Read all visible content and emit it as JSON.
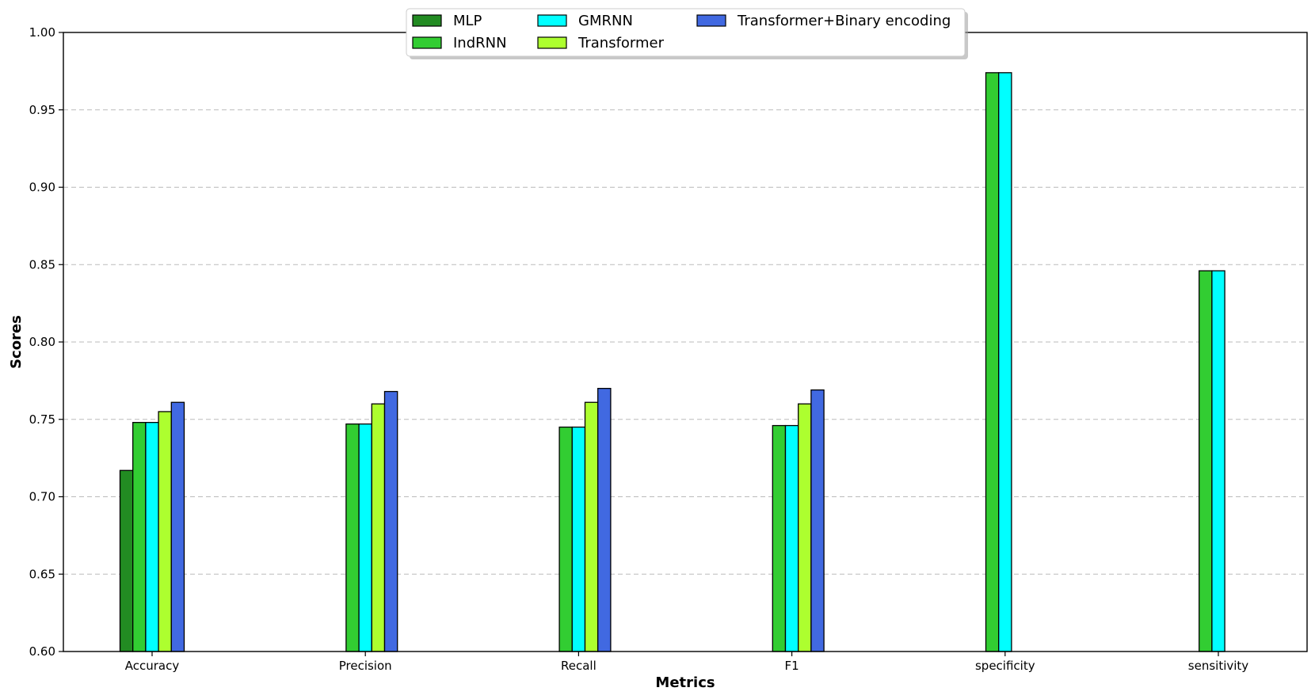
{
  "chart_data": {
    "type": "bar",
    "xlabel": "Metrics",
    "ylabel": "Scores",
    "ylim": [
      0.6,
      1.0
    ],
    "yticks": [
      "0.60",
      "0.65",
      "0.70",
      "0.75",
      "0.80",
      "0.85",
      "0.90",
      "0.95",
      "1.00"
    ],
    "grid": "y-dashed",
    "legend_position": "top-center",
    "categories": [
      "Accuracy",
      "Precision",
      "Recall",
      "F1",
      "specificity",
      "sensitivity"
    ],
    "series": [
      {
        "name": "MLP",
        "color": "#228B22",
        "values": [
          0.717,
          null,
          null,
          null,
          null,
          null
        ]
      },
      {
        "name": "IndRNN",
        "color": "#32CD32",
        "values": [
          0.748,
          0.747,
          0.745,
          0.746,
          0.974,
          0.846
        ]
      },
      {
        "name": "GMRNN",
        "color": "#00FFFF",
        "values": [
          0.748,
          0.747,
          0.745,
          0.746,
          0.974,
          0.846
        ]
      },
      {
        "name": "Transformer",
        "color": "#ADFF2F",
        "values": [
          0.755,
          0.76,
          0.761,
          0.76,
          null,
          null
        ]
      },
      {
        "name": "Transformer+Binary encoding",
        "color": "#4169E1",
        "values": [
          0.761,
          0.768,
          0.77,
          0.769,
          null,
          null
        ]
      }
    ]
  }
}
